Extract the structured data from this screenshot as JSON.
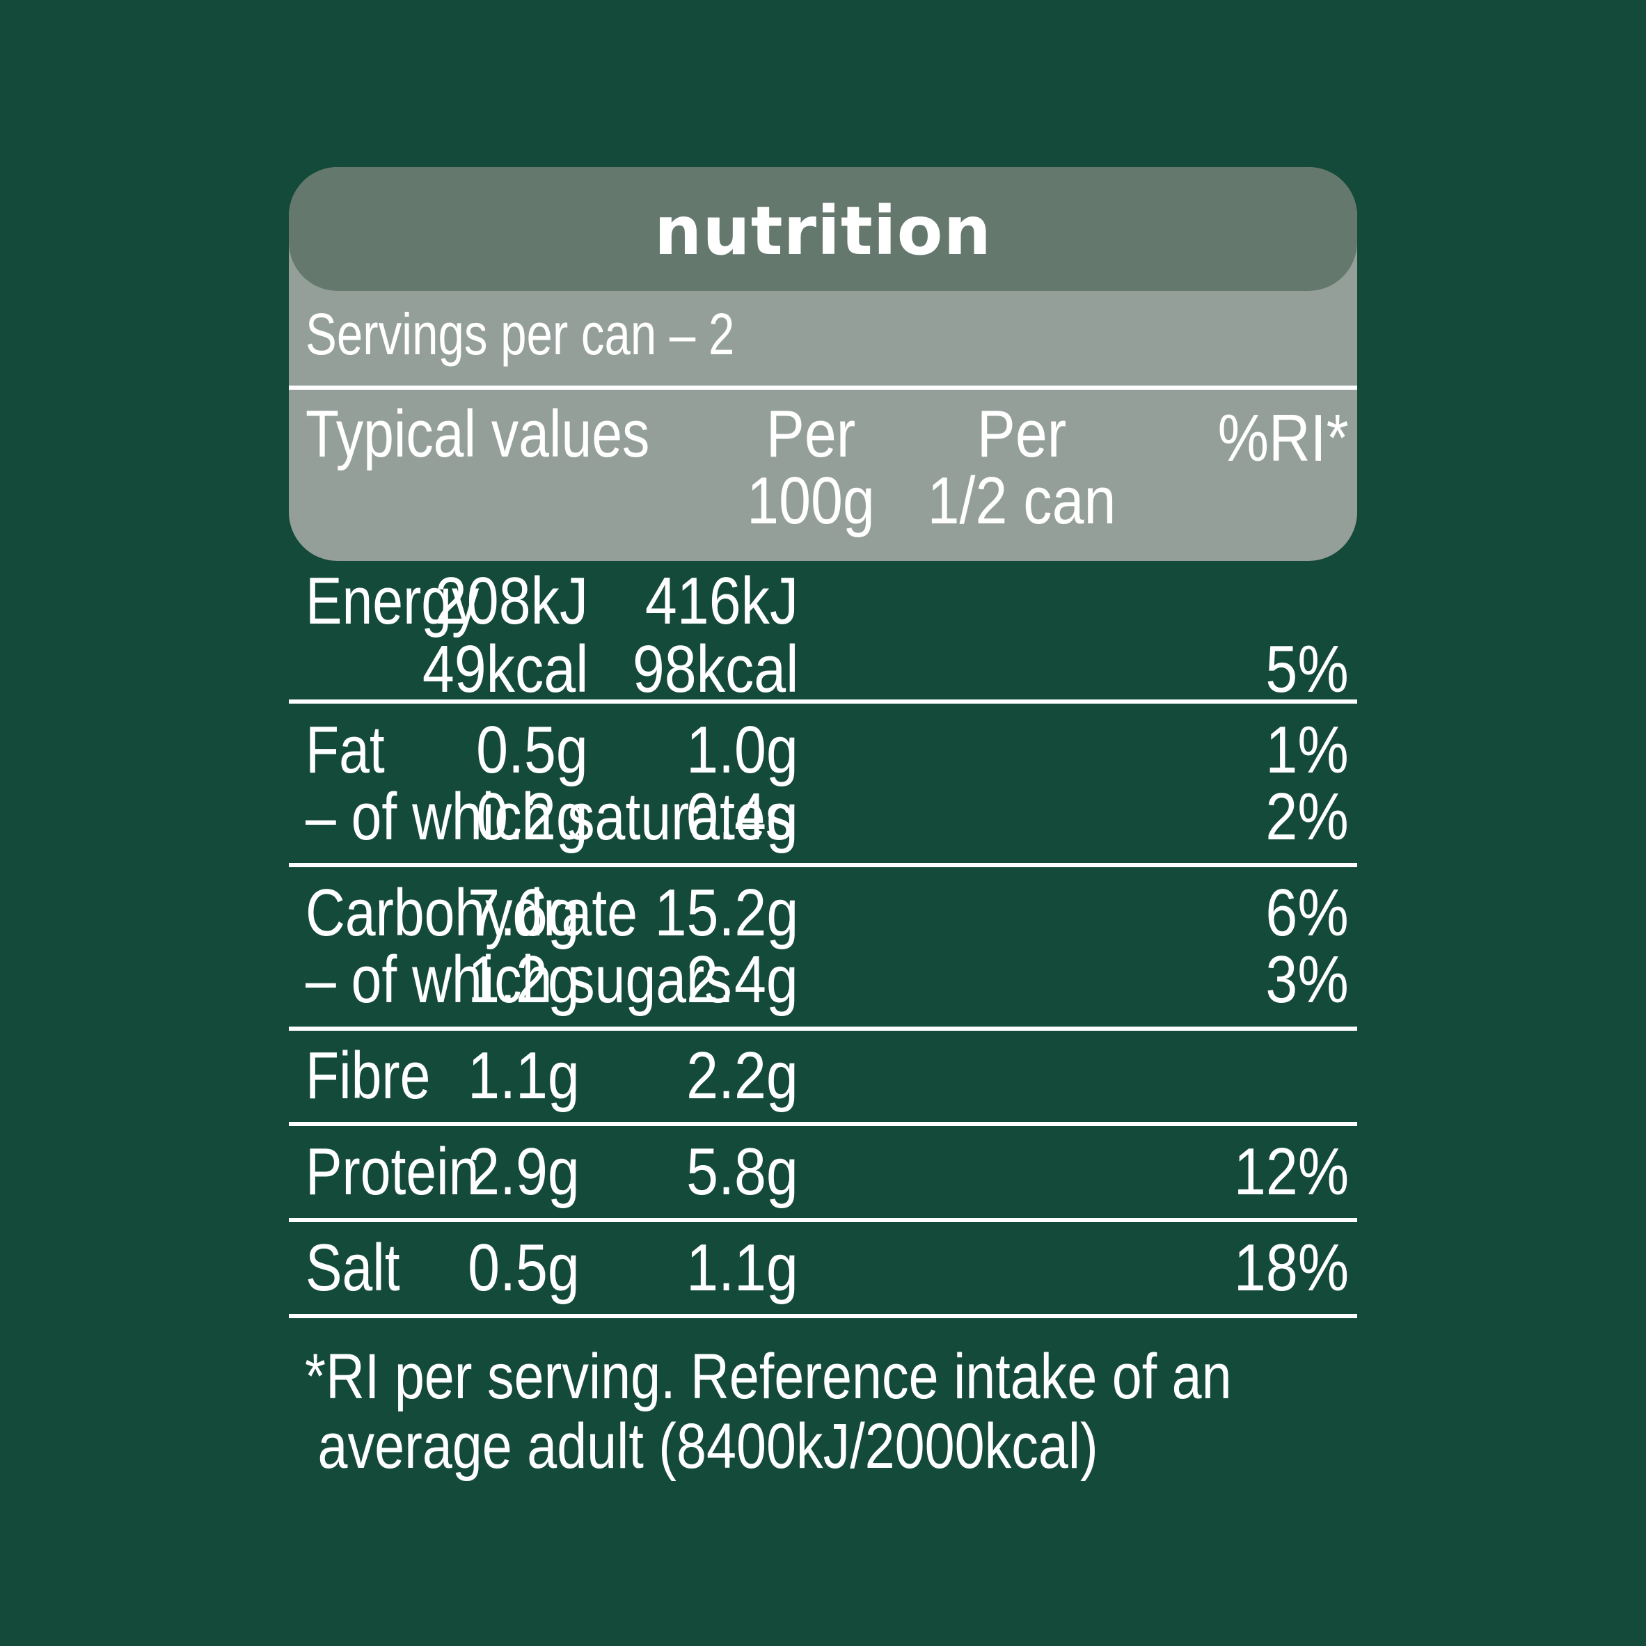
{
  "title": "nutrition",
  "servings": "Servings per can – 2",
  "columns": {
    "label": "Typical values",
    "per100_line1": "Per",
    "per100_line2": "100g",
    "perhalf_line1": "Per",
    "perhalf_line2": "1/2 can",
    "ri": "%RI*"
  },
  "rows": {
    "energy": {
      "label": "Energy",
      "per100_kj": "208kJ",
      "per100_kcal": "49kcal",
      "perhalf_kj": "416kJ",
      "perhalf_kcal": "98kcal",
      "ri": "5%"
    },
    "fat": {
      "label": "Fat",
      "per100": "0.5g",
      "perhalf": "1.0g",
      "ri": "1%"
    },
    "saturates": {
      "label": "– of which saturates",
      "per100": "0.2g",
      "perhalf": "0.4g",
      "ri": "2%"
    },
    "carbohydrate": {
      "label": "Carbohydrate",
      "per100": "7.6g",
      "perhalf": "15.2g",
      "ri": "6%"
    },
    "sugars": {
      "label": "– of which sugars",
      "per100": "1.2g",
      "perhalf": "2.4g",
      "ri": "3%"
    },
    "fibre": {
      "label": "Fibre",
      "per100": "1.1g",
      "perhalf": "2.2g",
      "ri": ""
    },
    "protein": {
      "label": "Protein",
      "per100": "2.9g",
      "perhalf": "5.8g",
      "ri": "12%"
    },
    "salt": {
      "label": "Salt",
      "per100": "0.5g",
      "perhalf": "1.1g",
      "ri": "18%"
    }
  },
  "footnote": {
    "line1": "*RI per serving. Reference intake of an",
    "line2": "average adult (8400kJ/2000kcal)"
  },
  "colors": {
    "background": "#144a39",
    "header_panel": "#959f9a",
    "title_bar": "#65786e",
    "text": "#ffffff"
  }
}
